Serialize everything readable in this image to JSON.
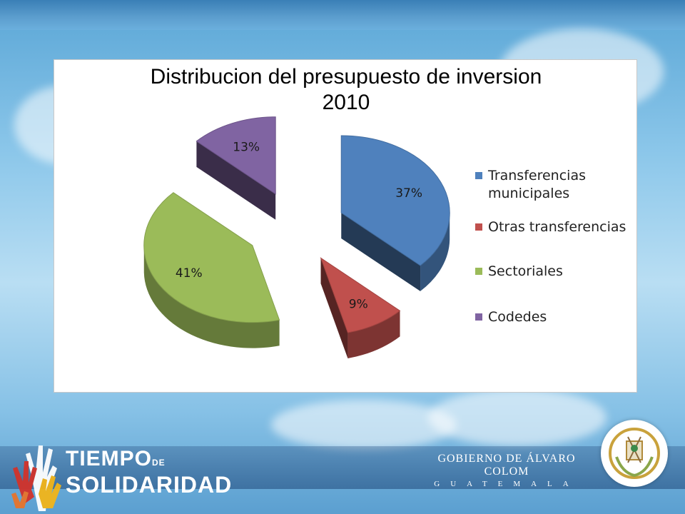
{
  "chart_data": {
    "type": "pie",
    "title": "Distribucion del presupuesto de inversion",
    "subtitle": "2010",
    "exploded": true,
    "three_d": true,
    "categories": [
      "Transferencias municipales",
      "Otras transferencias",
      "Sectoriales",
      "Codedes"
    ],
    "values": [
      37,
      9,
      41,
      13
    ],
    "labels": [
      "37%",
      "9%",
      "41%",
      "13%"
    ],
    "colors": [
      "#4f81bd",
      "#c0504d",
      "#9bbb59",
      "#8064a2"
    ],
    "legend_position": "right"
  },
  "branding": {
    "left_line1": "TIEMPO",
    "left_line1_suffix": "DE",
    "left_line2": "SOLIDARIDAD",
    "right_line1": "GOBIERNO DE ÁLVARO COLOM",
    "right_line2": "GUATEMALA"
  },
  "icons": {
    "hands_logo": "hands-logo-icon",
    "seal": "coat-of-arms-icon"
  }
}
